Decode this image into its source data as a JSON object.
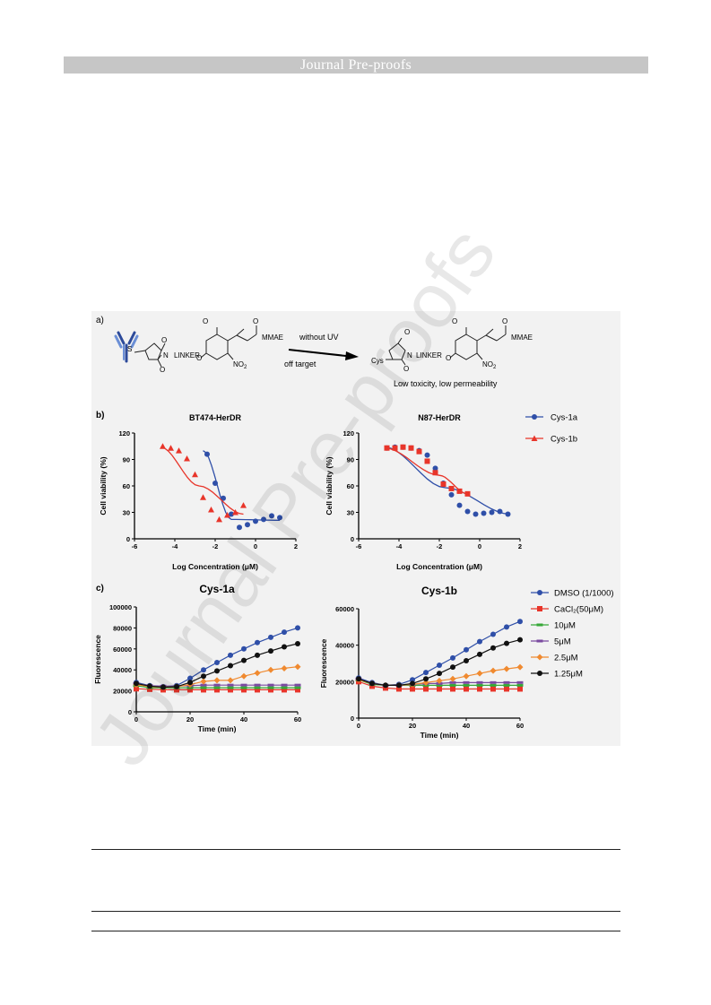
{
  "header": {
    "title": "Journal Pre-proofs"
  },
  "watermark": {
    "text": "Journal Pre-proofs"
  },
  "panel_a": {
    "label": "a)",
    "arrow_top": "without UV",
    "arrow_bottom": "off target",
    "caption": "Low toxicity, low permeability",
    "linker": "LINKER",
    "payload": "MMAE",
    "nitro": "NO",
    "nitro_sub": "2",
    "cys": "Cys",
    "s_atom": "S",
    "n_atom": "N",
    "o_atom": "O"
  },
  "panel_b_label": "b)",
  "panel_c_label": "c)",
  "chart_data": [
    {
      "type": "scatter",
      "title": "BT474-HerDR",
      "xlabel": "Log Concentration (μM)",
      "ylabel": "Cell viability (%)",
      "xlim": [
        -6,
        2
      ],
      "ylim": [
        0,
        120
      ],
      "xticks": [
        "-6",
        "-4",
        "-2",
        "0",
        "2"
      ],
      "yticks": [
        "0",
        "30",
        "60",
        "90",
        "120"
      ],
      "series": [
        {
          "name": "Cys-1a",
          "color": "#2f4fa8",
          "marker": "circle",
          "x": [
            -2.4,
            -2.0,
            -1.6,
            -1.2,
            -0.8,
            -0.4,
            0.0,
            0.4,
            0.8,
            1.2
          ],
          "y": [
            96,
            63,
            46,
            28,
            13,
            16,
            20,
            22,
            26,
            24
          ],
          "fit_x": [
            -2.6,
            -1.2,
            1.2
          ],
          "fit_y": [
            100,
            22,
            21
          ]
        },
        {
          "name": "Cys-1b",
          "color": "#e8352a",
          "marker": "triangle",
          "x": [
            -4.6,
            -4.2,
            -3.8,
            -3.4,
            -3.0,
            -2.6,
            -2.2,
            -1.8,
            -1.4,
            -1.0,
            -0.6
          ],
          "y": [
            105,
            103,
            100,
            91,
            73,
            47,
            33,
            22,
            27,
            30,
            38
          ],
          "fit_x": [
            -4.7,
            -2.8,
            -0.6
          ],
          "fit_y": [
            104,
            60,
            28
          ]
        }
      ]
    },
    {
      "type": "scatter",
      "title": "N87-HerDR",
      "xlabel": "Log Concentration (μM)",
      "ylabel": "Cell viability (%)",
      "xlim": [
        -6,
        2
      ],
      "ylim": [
        0,
        120
      ],
      "xticks": [
        "-6",
        "-4",
        "-2",
        "0",
        "2"
      ],
      "yticks": [
        "0",
        "30",
        "60",
        "90",
        "120"
      ],
      "series": [
        {
          "name": "Cys-1a",
          "color": "#2f4fa8",
          "marker": "circle",
          "x": [
            -4.6,
            -4.2,
            -3.8,
            -3.4,
            -3.0,
            -2.6,
            -2.2,
            -1.8,
            -1.4,
            -1.0,
            -0.6,
            -0.2,
            0.2,
            0.6,
            1.0,
            1.4
          ],
          "y": [
            103,
            104,
            104,
            103,
            100,
            95,
            80,
            63,
            50,
            38,
            31,
            28,
            29,
            30,
            31,
            28
          ],
          "fit_x": [
            -4.7,
            -1.7,
            1.5
          ],
          "fit_y": [
            104,
            58,
            28
          ]
        },
        {
          "name": "Cys-1b",
          "color": "#e8352a",
          "marker": "square",
          "x": [
            -4.6,
            -4.2,
            -3.8,
            -3.4,
            -3.0,
            -2.6,
            -2.2,
            -1.8,
            -1.4,
            -1.0,
            -0.6
          ],
          "y": [
            103,
            103,
            104,
            103,
            99,
            88,
            75,
            62,
            57,
            54,
            51
          ],
          "fit_x": [
            -4.7,
            -2.0,
            -0.6
          ],
          "fit_y": [
            103,
            72,
            51
          ]
        }
      ]
    },
    {
      "type": "line",
      "title": "Cys-1a",
      "xlabel": "Time (min)",
      "ylabel": "Fluorescence",
      "xlim": [
        0,
        60
      ],
      "ylim": [
        0,
        100000
      ],
      "xticks": [
        "0",
        "20",
        "40",
        "60"
      ],
      "yticks": [
        "0",
        "20000",
        "40000",
        "60000",
        "80000",
        "100000"
      ],
      "x": [
        0,
        5,
        10,
        15,
        20,
        25,
        30,
        35,
        40,
        45,
        50,
        55,
        60
      ],
      "series": [
        {
          "name": "DMSO (1/1000)",
          "color": "#2f4fa8",
          "marker": "circle",
          "values": [
            28000,
            25000,
            24000,
            25000,
            32000,
            40000,
            47000,
            54000,
            60000,
            66000,
            71000,
            76000,
            80000
          ]
        },
        {
          "name": "CaCl₂(50μM)",
          "color": "#e8352a",
          "marker": "square",
          "values": [
            22000,
            21500,
            21000,
            21000,
            21000,
            21000,
            21000,
            21000,
            21000,
            21000,
            21000,
            21000,
            21000
          ]
        },
        {
          "name": "10μM",
          "color": "#37a838",
          "marker": "dash",
          "values": [
            25000,
            23000,
            23000,
            23000,
            23000,
            23000,
            23000,
            23000,
            23000,
            23000,
            23000,
            23000,
            23000
          ]
        },
        {
          "name": "5μM",
          "color": "#7a4aa0",
          "marker": "dash",
          "values": [
            27000,
            25000,
            24500,
            24500,
            25000,
            25500,
            25500,
            25500,
            25500,
            25500,
            25500,
            25500,
            25500
          ]
        },
        {
          "name": "2.5μM",
          "color": "#f08a30",
          "marker": "diamond",
          "values": [
            26000,
            24000,
            23500,
            24000,
            26000,
            29000,
            30000,
            30000,
            34000,
            37000,
            40000,
            41500,
            43000
          ]
        },
        {
          "name": "1.25μM",
          "color": "#111111",
          "marker": "circle",
          "values": [
            27000,
            24500,
            23500,
            24000,
            28000,
            34000,
            39000,
            44000,
            49000,
            54000,
            58000,
            62000,
            65000
          ]
        }
      ]
    },
    {
      "type": "line",
      "title": "Cys-1b",
      "xlabel": "Time (min)",
      "ylabel": "Fluorescence",
      "xlim": [
        0,
        60
      ],
      "ylim": [
        0,
        60000
      ],
      "xticks": [
        "0",
        "20",
        "40",
        "60"
      ],
      "yticks": [
        "0",
        "20000",
        "40000",
        "60000"
      ],
      "x": [
        0,
        5,
        10,
        15,
        20,
        25,
        30,
        35,
        40,
        45,
        50,
        55,
        60
      ],
      "series": [
        {
          "name": "DMSO (1/1000)",
          "color": "#2f4fa8",
          "marker": "circle",
          "values": [
            22000,
            19500,
            18000,
            18500,
            21000,
            25000,
            29000,
            33000,
            37500,
            42000,
            46000,
            50000,
            53000
          ]
        },
        {
          "name": "CaCl₂(50μM)",
          "color": "#e8352a",
          "marker": "square",
          "values": [
            20000,
            17500,
            16500,
            16000,
            16000,
            16000,
            16000,
            16000,
            16000,
            16000,
            16000,
            16000,
            16000
          ]
        },
        {
          "name": "10μM",
          "color": "#37a838",
          "marker": "dash",
          "values": [
            21000,
            18500,
            18000,
            18000,
            18000,
            18000,
            18000,
            18000,
            18000,
            18000,
            18000,
            18000,
            18000
          ]
        },
        {
          "name": "5μM",
          "color": "#7a4aa0",
          "marker": "dash",
          "values": [
            21500,
            19000,
            18000,
            18000,
            18500,
            19000,
            19000,
            19500,
            19500,
            19500,
            19500,
            19500,
            19500
          ]
        },
        {
          "name": "2.5μM",
          "color": "#f08a30",
          "marker": "diamond",
          "values": [
            21000,
            19000,
            18000,
            18000,
            18500,
            19500,
            20500,
            21500,
            23000,
            24500,
            26000,
            27000,
            28000
          ]
        },
        {
          "name": "1.25μM",
          "color": "#111111",
          "marker": "circle",
          "values": [
            21500,
            19000,
            18000,
            18000,
            19000,
            21500,
            24500,
            28000,
            31500,
            35000,
            38500,
            41000,
            43000
          ]
        }
      ]
    }
  ]
}
